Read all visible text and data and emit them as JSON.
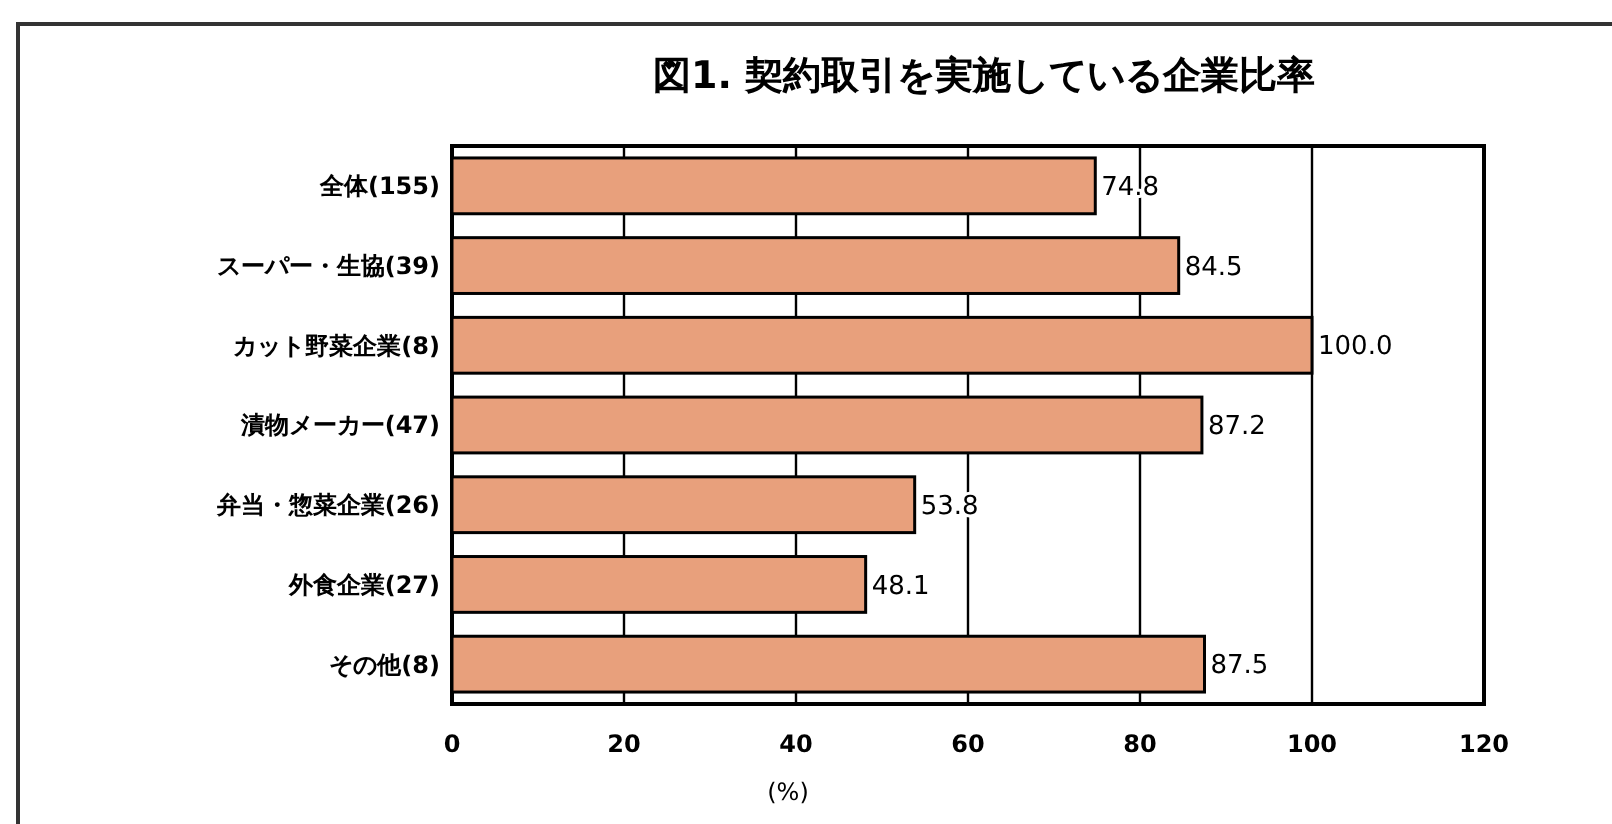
{
  "chart_data": {
    "type": "bar",
    "orientation": "horizontal",
    "title": "図1. 契約取引を実施している企業比率",
    "xlabel": "(%)",
    "categories": [
      "全体(155)",
      "スーパー・生協(39)",
      "カット野菜企業(8)",
      "漬物メーカー(47)",
      "弁当・惣菜企業(26)",
      "外食企業(27)",
      "その他(8)"
    ],
    "values": [
      74.8,
      84.5,
      100.0,
      87.2,
      53.8,
      48.1,
      87.5
    ],
    "value_labels": [
      "74.8",
      "84.5",
      "100.0",
      "87.2",
      "53.8",
      "48.1",
      "87.5"
    ],
    "color": "#e8a07c",
    "xlim": [
      0,
      120
    ],
    "xticks": [
      0,
      20,
      40,
      60,
      80,
      100,
      120
    ],
    "grid": "x"
  }
}
